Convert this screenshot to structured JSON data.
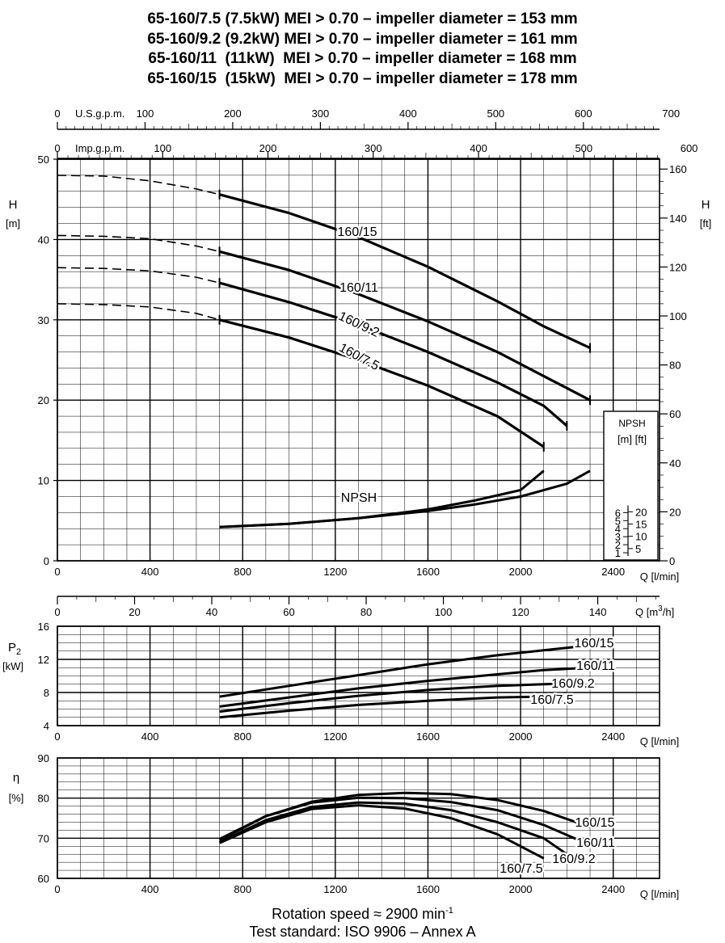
{
  "titles": [
    "65-160/7.5 (7.5kW) MEI > 0.70 – impeller diameter = 153 mm",
    "65-160/9.2 (9.2kW) MEI > 0.70 – impeller diameter = 161 mm",
    "65-160/11  (11kW)  MEI > 0.70 – impeller diameter = 168 mm",
    "65-160/15  (15kW)  MEI > 0.70 – impeller diameter = 178 mm"
  ],
  "footer": {
    "rotation_label": "Rotation speed ≈ 2900 min",
    "rotation_sup": "-1",
    "standard": "Test standard: ISO 9906 – Annex A"
  },
  "colors": {
    "ink": "#000000",
    "grid": "#000000",
    "background": "#ffffff"
  },
  "chart_data": [
    {
      "id": "head",
      "type": "line",
      "xlabel": "Q [l/min]",
      "ylabel_left": [
        "H",
        "[m]"
      ],
      "ylabel_right": [
        "H",
        "[ft]"
      ],
      "xlim": [
        0,
        2600
      ],
      "ylim": [
        0,
        50
      ],
      "x_ticks": [
        "0",
        "400",
        "800",
        "1200",
        "1600",
        "2000",
        "2400"
      ],
      "y_ticks": [
        "0",
        "10",
        "20",
        "30",
        "40",
        "50"
      ],
      "y_ticks_right": [
        "0",
        "20",
        "40",
        "60",
        "80",
        "100",
        "120",
        "140",
        "160"
      ],
      "top_axis_usgpm": {
        "label": "U.S.g.p.m.",
        "ticks": [
          "0",
          "100",
          "200",
          "300",
          "400",
          "500",
          "600",
          "700"
        ]
      },
      "top_axis_impgpm": {
        "label": "Imp.g.p.m.",
        "ticks": [
          "0",
          "100",
          "200",
          "300",
          "400",
          "500",
          "600"
        ]
      },
      "bottom_axis_m3h": {
        "label": "Q [m",
        "unit_sup": "3",
        "unit_tail": "/h]",
        "ticks": [
          "0",
          "20",
          "40",
          "60",
          "80",
          "100",
          "120",
          "140"
        ]
      },
      "grid": true,
      "series": [
        {
          "name": "160/15",
          "dashed": [
            [
              0,
              48.0
            ],
            [
              200,
              47.9
            ],
            [
              400,
              47.3
            ],
            [
              600,
              46.3
            ],
            [
              700,
              45.6
            ]
          ],
          "solid": [
            [
              700,
              45.6
            ],
            [
              1000,
              43.3
            ],
            [
              1300,
              40.3
            ],
            [
              1600,
              36.6
            ],
            [
              1900,
              32.3
            ],
            [
              2100,
              29.2
            ],
            [
              2300,
              26.5
            ]
          ],
          "marks": [
            [
              700,
              45.6
            ],
            [
              2300,
              26.5
            ]
          ]
        },
        {
          "name": "160/11",
          "dashed": [
            [
              0,
              40.5
            ],
            [
              200,
              40.4
            ],
            [
              400,
              40.1
            ],
            [
              600,
              39.2
            ],
            [
              700,
              38.5
            ]
          ],
          "solid": [
            [
              700,
              38.5
            ],
            [
              1000,
              36.2
            ],
            [
              1300,
              33.2
            ],
            [
              1600,
              29.8
            ],
            [
              1900,
              26.0
            ],
            [
              2100,
              23.0
            ],
            [
              2300,
              20.0
            ]
          ],
          "marks": [
            [
              700,
              38.5
            ],
            [
              2300,
              20.0
            ]
          ]
        },
        {
          "name": "160/9.2",
          "dashed": [
            [
              0,
              36.5
            ],
            [
              200,
              36.4
            ],
            [
              400,
              36.1
            ],
            [
              600,
              35.3
            ],
            [
              700,
              34.6
            ]
          ],
          "solid": [
            [
              700,
              34.6
            ],
            [
              1000,
              32.2
            ],
            [
              1300,
              29.4
            ],
            [
              1600,
              26.0
            ],
            [
              1900,
              22.2
            ],
            [
              2100,
              19.3
            ],
            [
              2200,
              16.8
            ]
          ],
          "marks": [
            [
              700,
              34.6
            ],
            [
              2200,
              16.8
            ]
          ]
        },
        {
          "name": "160/7.5",
          "dashed": [
            [
              0,
              32.0
            ],
            [
              200,
              31.9
            ],
            [
              400,
              31.6
            ],
            [
              600,
              30.8
            ],
            [
              700,
              30.0
            ]
          ],
          "solid": [
            [
              700,
              30.0
            ],
            [
              1000,
              27.8
            ],
            [
              1300,
              25.0
            ],
            [
              1600,
              21.8
            ],
            [
              1900,
              18.0
            ],
            [
              2100,
              14.2
            ]
          ],
          "marks": [
            [
              700,
              30.0
            ],
            [
              2100,
              14.2
            ]
          ]
        }
      ],
      "npsh": {
        "label": "NPSH",
        "curves": [
          [
            [
              700,
              4.2
            ],
            [
              1000,
              4.6
            ],
            [
              1300,
              5.3
            ],
            [
              1600,
              6.4
            ],
            [
              1800,
              7.5
            ],
            [
              2000,
              8.8
            ],
            [
              2100,
              11.2
            ]
          ],
          [
            [
              700,
              4.2
            ],
            [
              1000,
              4.6
            ],
            [
              1300,
              5.3
            ],
            [
              1600,
              6.2
            ],
            [
              1800,
              7.0
            ],
            [
              2000,
              8.0
            ],
            [
              2200,
              9.6
            ],
            [
              2300,
              11.2
            ]
          ]
        ],
        "inset": {
          "title": "NPSH",
          "units": "[m] [ft]",
          "m_ticks": [
            "1",
            "2",
            "3",
            "4",
            "5",
            "6"
          ],
          "ft_ticks": [
            "5",
            "10",
            "15",
            "20"
          ]
        }
      }
    },
    {
      "id": "power",
      "type": "line",
      "xlabel": "Q [l/min]",
      "ylabel": [
        "P",
        "2",
        "[kW]"
      ],
      "xlim": [
        0,
        2600
      ],
      "ylim": [
        4,
        16
      ],
      "x_ticks": [
        "0",
        "400",
        "800",
        "1200",
        "1600",
        "2000",
        "2400"
      ],
      "y_ticks": [
        "4",
        "8",
        "12",
        "16"
      ],
      "grid": true,
      "series": [
        {
          "name": "160/15",
          "points": [
            [
              700,
              7.5
            ],
            [
              1000,
              8.8
            ],
            [
              1300,
              10.1
            ],
            [
              1600,
              11.4
            ],
            [
              1900,
              12.5
            ],
            [
              2100,
              13.1
            ],
            [
              2300,
              13.7
            ]
          ]
        },
        {
          "name": "160/11",
          "points": [
            [
              700,
              6.3
            ],
            [
              1000,
              7.4
            ],
            [
              1300,
              8.5
            ],
            [
              1600,
              9.4
            ],
            [
              1900,
              10.2
            ],
            [
              2100,
              10.7
            ],
            [
              2300,
              11.0
            ]
          ]
        },
        {
          "name": "160/9.2",
          "points": [
            [
              700,
              5.7
            ],
            [
              1000,
              6.7
            ],
            [
              1300,
              7.6
            ],
            [
              1600,
              8.3
            ],
            [
              1900,
              8.8
            ],
            [
              2100,
              9.0
            ],
            [
              2200,
              9.1
            ]
          ]
        },
        {
          "name": "160/7.5",
          "points": [
            [
              700,
              5.0
            ],
            [
              1000,
              5.8
            ],
            [
              1300,
              6.5
            ],
            [
              1600,
              7.0
            ],
            [
              1900,
              7.4
            ],
            [
              2100,
              7.5
            ]
          ]
        }
      ]
    },
    {
      "id": "efficiency",
      "type": "line",
      "xlabel": "Q [l/min]",
      "ylabel": [
        "η",
        "[%]"
      ],
      "xlim": [
        0,
        2600
      ],
      "ylim": [
        60,
        90
      ],
      "x_ticks": [
        "0",
        "400",
        "800",
        "1200",
        "1600",
        "2000",
        "2400"
      ],
      "y_ticks": [
        "60",
        "70",
        "80",
        "90"
      ],
      "grid": true,
      "series": [
        {
          "name": "160/15",
          "points": [
            [
              700,
              69.5
            ],
            [
              900,
              75.5
            ],
            [
              1100,
              79.1
            ],
            [
              1300,
              80.8
            ],
            [
              1500,
              81.3
            ],
            [
              1700,
              81.0
            ],
            [
              1900,
              79.5
            ],
            [
              2100,
              76.8
            ],
            [
              2300,
              72.8
            ]
          ]
        },
        {
          "name": "160/11",
          "points": [
            [
              700,
              69.8
            ],
            [
              900,
              75.5
            ],
            [
              1100,
              78.9
            ],
            [
              1300,
              80.1
            ],
            [
              1500,
              80.0
            ],
            [
              1700,
              79.0
            ],
            [
              1900,
              77.0
            ],
            [
              2100,
              73.3
            ],
            [
              2300,
              68.3
            ]
          ]
        },
        {
          "name": "160/9.2",
          "points": [
            [
              700,
              69.0
            ],
            [
              900,
              74.5
            ],
            [
              1100,
              77.8
            ],
            [
              1300,
              78.9
            ],
            [
              1500,
              78.6
            ],
            [
              1700,
              77.0
            ],
            [
              1900,
              74.0
            ],
            [
              2100,
              70.0
            ],
            [
              2200,
              66.0
            ]
          ]
        },
        {
          "name": "160/7.5",
          "points": [
            [
              700,
              68.8
            ],
            [
              900,
              74.0
            ],
            [
              1100,
              77.3
            ],
            [
              1300,
              78.2
            ],
            [
              1500,
              77.4
            ],
            [
              1700,
              75.0
            ],
            [
              1900,
              71.0
            ],
            [
              2100,
              65.0
            ]
          ]
        }
      ]
    }
  ]
}
